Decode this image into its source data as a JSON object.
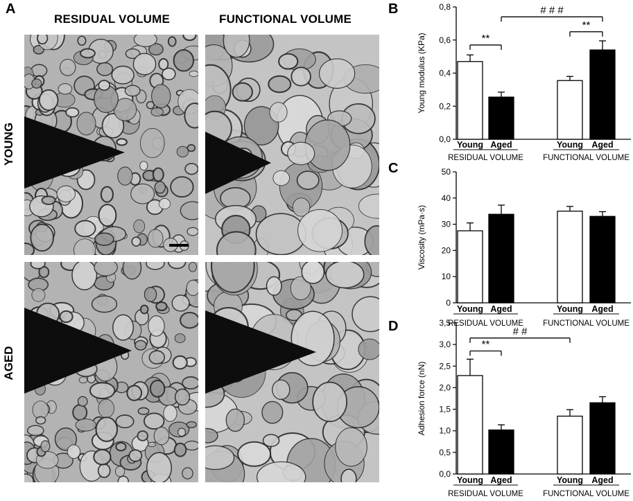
{
  "panel_labels": {
    "a": "A",
    "b": "B",
    "c": "C",
    "d": "D"
  },
  "micrographs": {
    "col_titles": [
      "RESIDUAL VOLUME",
      "FUNCTIONAL VOLUME"
    ],
    "row_titles": [
      "YOUNG",
      "AGED"
    ]
  },
  "chart_data": [
    {
      "id": "B",
      "type": "bar",
      "ylabel": "Young modulus (KPa)",
      "ylim": [
        0,
        0.8
      ],
      "yticks": [
        "0,0",
        "0,2",
        "0,4",
        "0,6",
        "0,8"
      ],
      "groups": [
        "RESIDUAL VOLUME",
        "FUNCTIONAL VOLUME"
      ],
      "categories": [
        "Young",
        "Aged",
        "Young",
        "Aged"
      ],
      "values": [
        0.47,
        0.255,
        0.355,
        0.54
      ],
      "errors": [
        0.04,
        0.03,
        0.025,
        0.055
      ],
      "fill": [
        "#ffffff",
        "#000000",
        "#ffffff",
        "#000000"
      ],
      "annotations": [
        {
          "text": "**",
          "from": 0,
          "to": 1,
          "y": 0.57
        },
        {
          "text": "**",
          "from": 2,
          "to": 3,
          "y": 0.65
        },
        {
          "text": "# # #",
          "from": 1,
          "to": 3,
          "y": 0.74
        }
      ]
    },
    {
      "id": "C",
      "type": "bar",
      "ylabel": "Viscosity (mPa·s)",
      "ylim": [
        0,
        50
      ],
      "yticks": [
        "0",
        "10",
        "20",
        "30",
        "40",
        "50"
      ],
      "groups": [
        "RESIDUAL VOLUME",
        "FUNCTIONAL VOLUME"
      ],
      "categories": [
        "Young",
        "Aged",
        "Young",
        "Aged"
      ],
      "values": [
        27.5,
        33.8,
        35.0,
        33.0
      ],
      "errors": [
        3.0,
        3.5,
        1.8,
        1.8
      ],
      "fill": [
        "#ffffff",
        "#000000",
        "#ffffff",
        "#000000"
      ],
      "annotations": []
    },
    {
      "id": "D",
      "type": "bar",
      "ylabel": "Adhesion force (nN)",
      "ylim": [
        0,
        3.5
      ],
      "yticks": [
        "0,0",
        "0,5",
        "1,0",
        "1,5",
        "2,0",
        "2,5",
        "3,0",
        "3,5"
      ],
      "groups": [
        "RESIDUAL VOLUME",
        "FUNCTIONAL VOLUME"
      ],
      "categories": [
        "Young",
        "Aged",
        "Young",
        "Aged"
      ],
      "values": [
        2.28,
        1.02,
        1.34,
        1.65
      ],
      "errors": [
        0.38,
        0.12,
        0.15,
        0.14
      ],
      "fill": [
        "#ffffff",
        "#000000",
        "#ffffff",
        "#000000"
      ],
      "annotations": [
        {
          "text": "**",
          "from": 0,
          "to": 1,
          "y": 2.85
        },
        {
          "text": "# #",
          "from": 0,
          "to": 2,
          "y": 3.15
        }
      ]
    }
  ]
}
